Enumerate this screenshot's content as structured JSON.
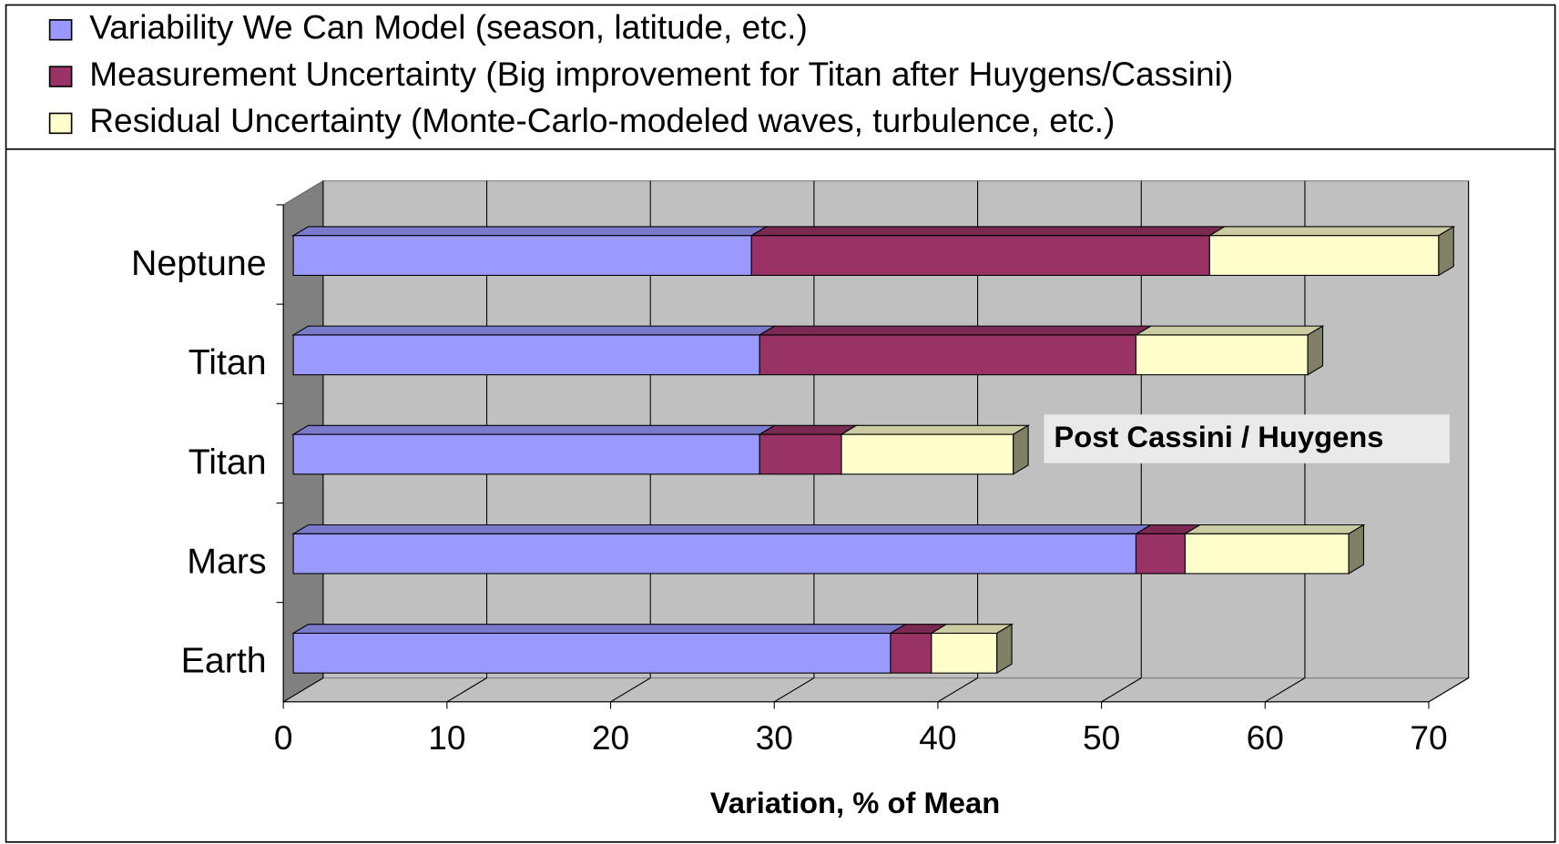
{
  "chart_data": {
    "type": "bar3d_stacked_horizontal",
    "categories": [
      "Neptune",
      "Titan",
      "Titan",
      "Mars",
      "Earth"
    ],
    "series": [
      {
        "name": "Variability We Can Model (season, latitude, etc.)",
        "color": "#9999ff",
        "values": [
          28,
          28.5,
          28.5,
          51.5,
          36.5
        ]
      },
      {
        "name": "Measurement Uncertainty (Big improvement for Titan after Huygens/Cassini)",
        "color": "#993366",
        "values": [
          28,
          23,
          5,
          3,
          2.5
        ]
      },
      {
        "name": "Residual Uncertainty (Monte-Carlo-modeled waves, turbulence, etc.)",
        "color": "#ffffcc",
        "values": [
          14,
          10.5,
          10.5,
          10,
          4
        ]
      }
    ],
    "xlabel": "Variation, % of Mean",
    "annotation": "Post Cassini / Huygens",
    "xlim": [
      0,
      70
    ],
    "xticks": [
      0,
      10,
      20,
      30,
      40,
      50,
      60,
      70
    ],
    "grid": true
  }
}
